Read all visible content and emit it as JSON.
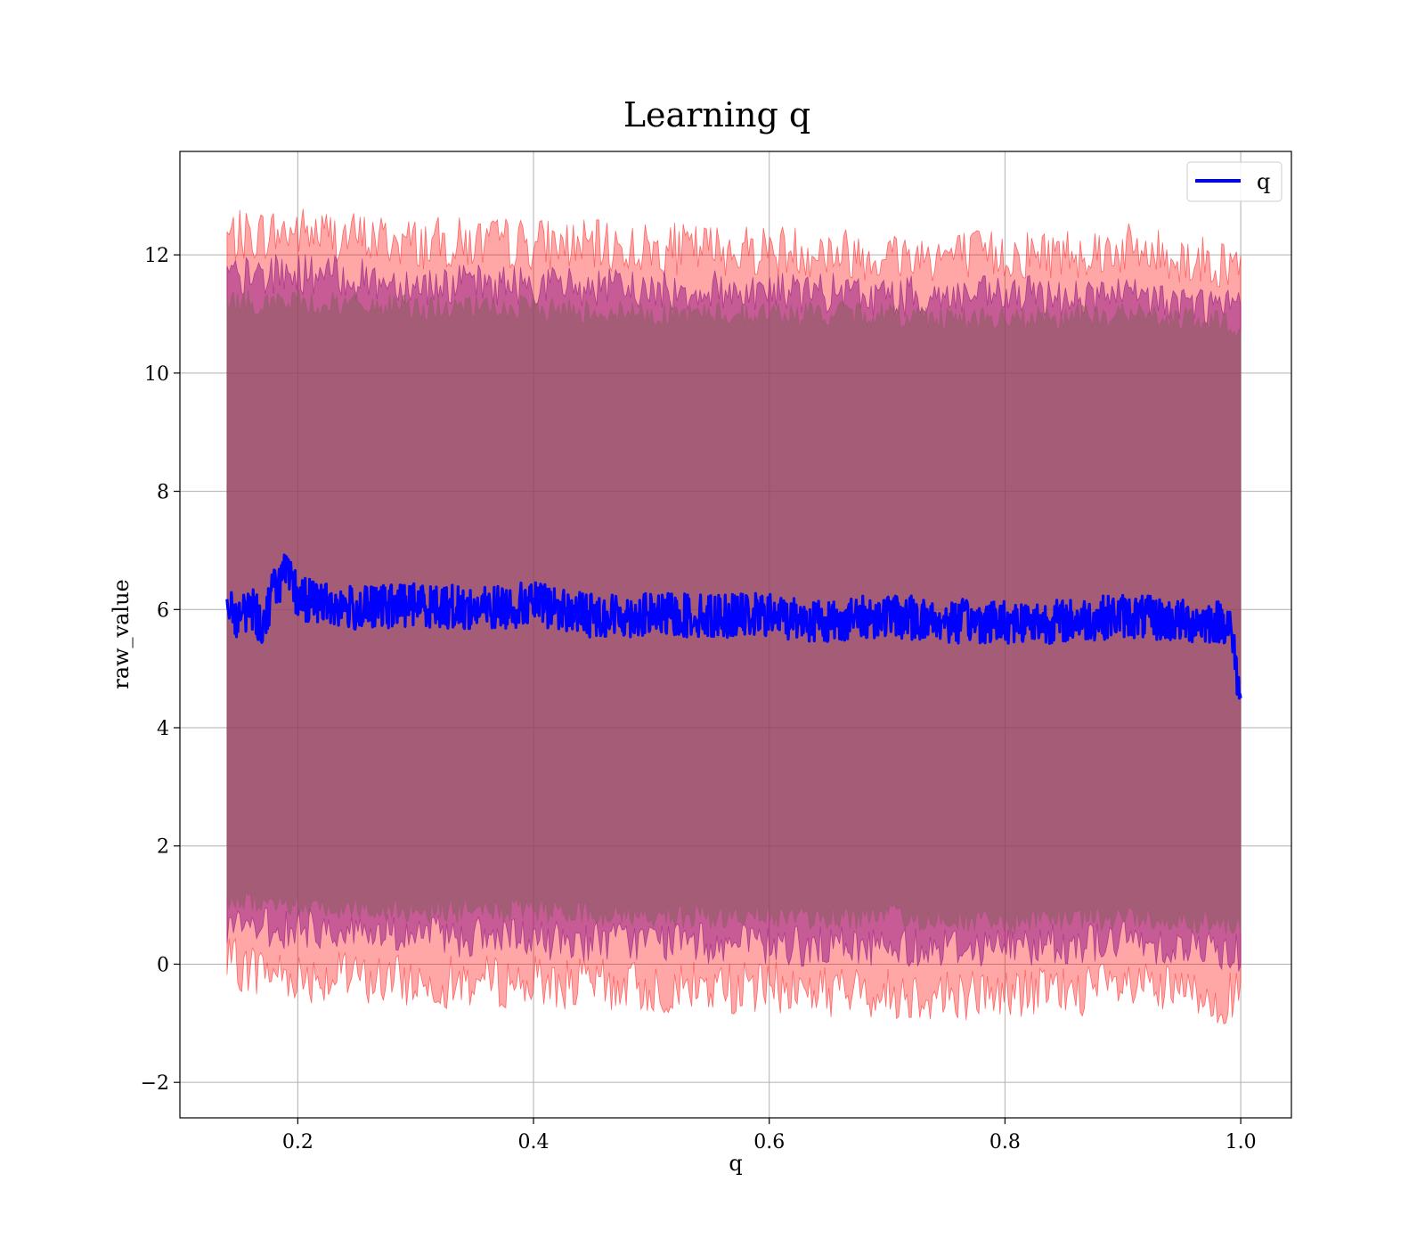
{
  "chart_data": {
    "type": "line",
    "title": "Learning q",
    "xlabel": "q",
    "ylabel": "raw_value",
    "xlim": [
      0.1,
      1.043
    ],
    "ylim": [
      -2.6,
      13.75
    ],
    "xticks": [
      0.2,
      0.4,
      0.6,
      0.8,
      1.0
    ],
    "xtick_labels": [
      "0.2",
      "0.4",
      "0.6",
      "0.8",
      "1.0"
    ],
    "yticks": [
      -2,
      0,
      2,
      4,
      6,
      8,
      10,
      12
    ],
    "ytick_labels": [
      "−2",
      "0",
      "2",
      "4",
      "6",
      "8",
      "10",
      "12"
    ],
    "grid": true,
    "legend": {
      "placement": "top-right",
      "entries": [
        "q"
      ]
    },
    "x_range": [
      0.14,
      1.0
    ],
    "series": [
      {
        "name": "q",
        "color": "#0000ff",
        "x": [
          0.14,
          0.15,
          0.16,
          0.17,
          0.18,
          0.19,
          0.2,
          0.25,
          0.3,
          0.35,
          0.4,
          0.45,
          0.5,
          0.55,
          0.6,
          0.65,
          0.7,
          0.75,
          0.8,
          0.85,
          0.9,
          0.95,
          0.99,
          1.0
        ],
        "y": [
          6.2,
          5.8,
          6.1,
          5.7,
          6.4,
          6.6,
          6.2,
          6.0,
          6.1,
          6.0,
          6.1,
          5.9,
          5.9,
          5.9,
          5.9,
          5.8,
          5.9,
          5.8,
          5.8,
          5.8,
          5.9,
          5.8,
          5.8,
          4.5
        ]
      }
    ],
    "bands": [
      {
        "color": "#ff0000",
        "opacity": 0.35,
        "x": [
          0.14,
          0.2,
          0.3,
          0.4,
          0.5,
          0.6,
          0.7,
          0.8,
          0.9,
          1.0
        ],
        "upper": [
          12.3,
          12.4,
          12.2,
          12.2,
          12.1,
          12.1,
          12.0,
          12.0,
          12.1,
          11.8
        ],
        "lower": [
          0.0,
          -0.2,
          -0.3,
          -0.3,
          -0.4,
          -0.4,
          -0.5,
          -0.5,
          -0.4,
          -0.6
        ]
      },
      {
        "color": "#800080",
        "opacity": 0.45,
        "x": [
          0.14,
          0.2,
          0.3,
          0.4,
          0.5,
          0.6,
          0.7,
          0.8,
          0.9,
          1.0
        ],
        "upper": [
          11.6,
          11.7,
          11.5,
          11.5,
          11.4,
          11.4,
          11.3,
          11.3,
          11.3,
          11.1
        ],
        "lower": [
          0.6,
          0.6,
          0.5,
          0.4,
          0.4,
          0.3,
          0.3,
          0.3,
          0.4,
          0.2
        ]
      },
      {
        "color": "#8b5e5e",
        "opacity": 0.55,
        "x": [
          0.14,
          0.2,
          0.3,
          0.4,
          0.5,
          0.6,
          0.7,
          0.8,
          0.9,
          1.0
        ],
        "upper": [
          11.2,
          11.2,
          11.1,
          11.1,
          11.0,
          11.0,
          11.0,
          10.9,
          11.0,
          10.8
        ],
        "lower": [
          1.1,
          1.0,
          0.9,
          0.9,
          0.8,
          0.8,
          0.8,
          0.7,
          0.8,
          0.7
        ]
      }
    ]
  }
}
